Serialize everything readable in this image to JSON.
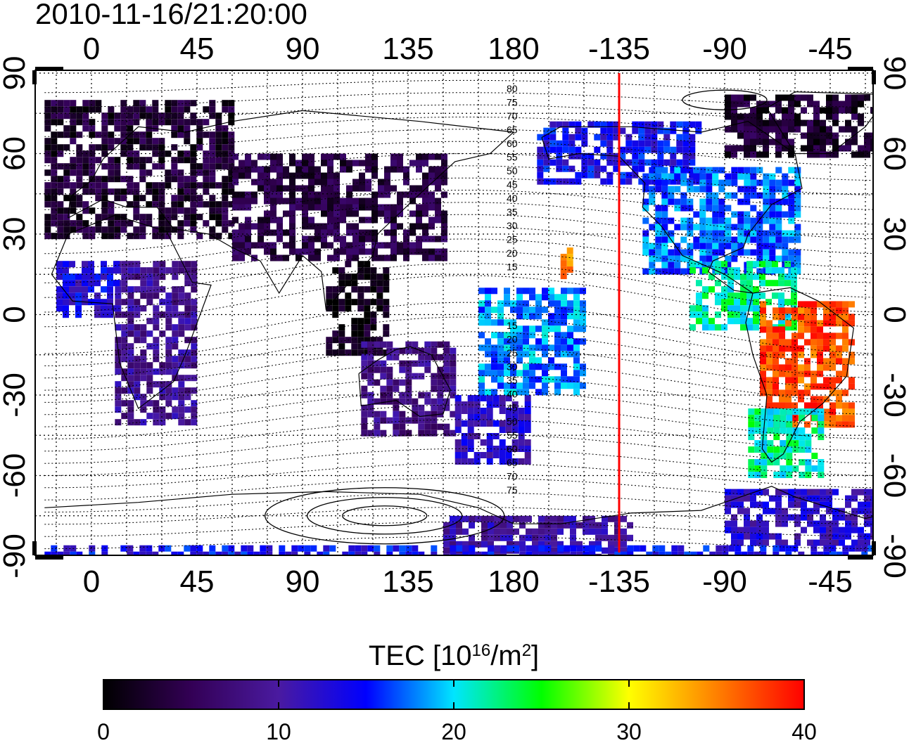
{
  "timestamp": "2010-11-16/21:20:00",
  "x_ticks": [
    {
      "lon": 0,
      "label": "0"
    },
    {
      "lon": 45,
      "label": "45"
    },
    {
      "lon": 90,
      "label": "90"
    },
    {
      "lon": 135,
      "label": "135"
    },
    {
      "lon": 180,
      "label": "180"
    },
    {
      "lon": 225,
      "label": "-135"
    },
    {
      "lon": 270,
      "label": "-90"
    },
    {
      "lon": 315,
      "label": "-45"
    }
  ],
  "y_ticks": [
    {
      "lat": 90,
      "label": "90"
    },
    {
      "lat": 60,
      "label": "60"
    },
    {
      "lat": 30,
      "label": "30"
    },
    {
      "lat": 0,
      "label": "0"
    },
    {
      "lat": -30,
      "label": "-30"
    },
    {
      "lat": -60,
      "label": "-60"
    },
    {
      "lat": -90,
      "label": "-90"
    }
  ],
  "colorbar": {
    "title_prefix": "TEC  [10",
    "title_sup1": "16",
    "title_mid": "/m",
    "title_sup2": "2",
    "title_suffix": "]",
    "min": 0,
    "max": 40,
    "tick_labels": [
      "0",
      "10",
      "20",
      "30",
      "40"
    ],
    "stops": [
      "#000000",
      "#330055",
      "#4a1aa0",
      "#0000ff",
      "#00e5ff",
      "#00ff00",
      "#ffff00",
      "#ff8000",
      "#ff0000"
    ]
  },
  "marker_line": {
    "lon": 225,
    "color": "#ff0000"
  },
  "contour_labels_north": [
    "80",
    "75",
    "70",
    "65",
    "60",
    "55",
    "50",
    "45",
    "40",
    "35",
    "30",
    "25",
    "20",
    "15"
  ],
  "contour_labels_south": [
    "15",
    "20",
    "25",
    "30",
    "35",
    "40",
    "45",
    "50",
    "55",
    "60",
    "65",
    "70",
    "75"
  ],
  "tec_regions": [
    {
      "name": "europe-north-asia",
      "lon": [
        -20,
        60
      ],
      "lat": [
        30,
        80
      ],
      "tec": 3
    },
    {
      "name": "greenland-arctic",
      "lon": [
        270,
        340
      ],
      "lat": [
        60,
        82
      ],
      "tec": 3
    },
    {
      "name": "asia-scatter",
      "lon": [
        60,
        150
      ],
      "lat": [
        20,
        60
      ],
      "tec": 4
    },
    {
      "name": "south-asia",
      "lon": [
        100,
        125
      ],
      "lat": [
        -15,
        20
      ],
      "tec": 1
    },
    {
      "name": "africa-east",
      "lon": [
        10,
        45
      ],
      "lat": [
        -40,
        20
      ],
      "tec": 9
    },
    {
      "name": "australia",
      "lon": [
        115,
        155
      ],
      "lat": [
        -45,
        -10
      ],
      "tec": 8
    },
    {
      "name": "new-zealand",
      "lon": [
        155,
        185
      ],
      "lat": [
        -55,
        -30
      ],
      "tec": 12
    },
    {
      "name": "pacific-islands",
      "lon": [
        165,
        210
      ],
      "lat": [
        -30,
        10
      ],
      "tec": 18
    },
    {
      "name": "alaska-canada",
      "lon": [
        190,
        260
      ],
      "lat": [
        50,
        72
      ],
      "tec": 14
    },
    {
      "name": "north-america",
      "lon": [
        235,
        300
      ],
      "lat": [
        15,
        55
      ],
      "tec": 17
    },
    {
      "name": "central-america",
      "lon": [
        255,
        300
      ],
      "lat": [
        -5,
        20
      ],
      "tec": 22
    },
    {
      "name": "south-america-north",
      "lon": [
        285,
        325
      ],
      "lat": [
        -40,
        5
      ],
      "tec": 37
    },
    {
      "name": "south-america-south",
      "lon": [
        280,
        310
      ],
      "lat": [
        -60,
        -35
      ],
      "tec": 22
    },
    {
      "name": "antarctica-east",
      "lon": [
        150,
        230
      ],
      "lat": [
        -90,
        -75
      ],
      "tec": 10
    },
    {
      "name": "antarctica-west",
      "lon": [
        270,
        340
      ],
      "lat": [
        -85,
        -65
      ],
      "tec": 12
    },
    {
      "name": "antarctic-rim",
      "lon": [
        -20,
        340
      ],
      "lat": [
        -90,
        -86
      ],
      "tec": 14
    },
    {
      "name": "hawaii",
      "lon": [
        200,
        205
      ],
      "lat": [
        15,
        25
      ],
      "tec": 34
    },
    {
      "name": "west-africa",
      "lon": [
        -15,
        10
      ],
      "lat": [
        0,
        20
      ],
      "tec": 13
    }
  ]
}
